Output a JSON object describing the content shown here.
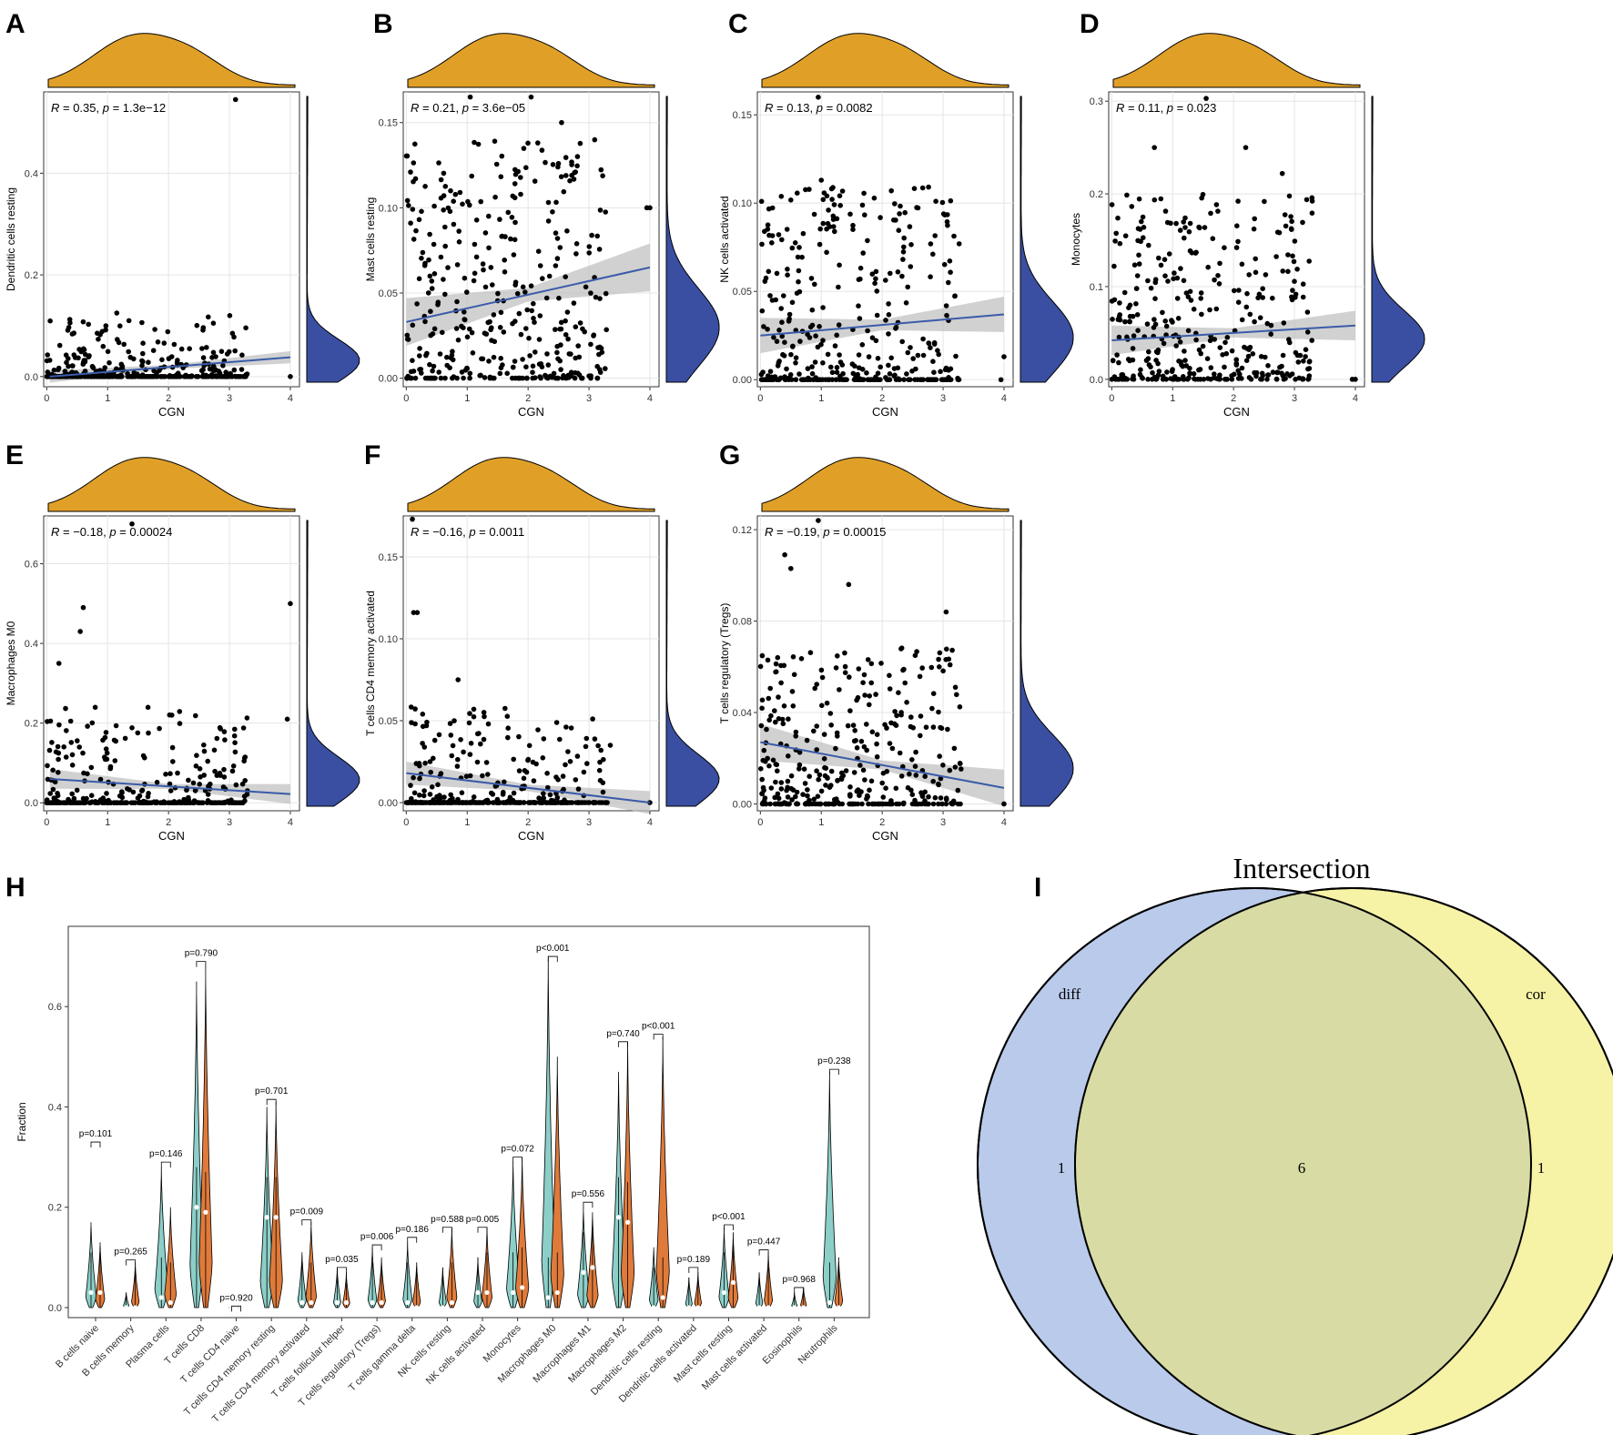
{
  "colors": {
    "accent_orange": "#E0A028",
    "density_blue": "#3A4FA1",
    "reg_line": "#3B5BA9",
    "ci_band": "#BEBEBE",
    "violin_teal": "#8CCFC8",
    "violin_orange": "#E07A3A",
    "venn_diff": "#B9CAEA",
    "venn_cor": "#F6F2A6",
    "venn_overlap": "#D8DCA4"
  },
  "chart_data": [
    {
      "panel": "A",
      "type": "scatter",
      "xlabel": "CGN",
      "ylabel": "Dendritic cells resting",
      "xlim": [
        -0.05,
        4.15
      ],
      "ylim": [
        -0.02,
        0.56
      ],
      "xticks": [
        0,
        1,
        2,
        3,
        4
      ],
      "yticks": [
        0.0,
        0.2,
        0.4
      ],
      "ytick_labels": [
        "0.0",
        "0.2",
        "0.4"
      ],
      "stat_r": "R = 0.35, ",
      "stat_p": "p = 1.3e−12",
      "fit": {
        "x0": 0.05,
        "y0": 0.0,
        "x1": 4.0,
        "y1": 0.038,
        "band": [
          0.004,
          0.012
        ]
      },
      "ymax_data": 0.12,
      "skew": 2.6,
      "zero_frac": 0.45,
      "outliers": [
        [
          3.1,
          0.545
        ],
        [
          1.15,
          0.125
        ],
        [
          1.35,
          0.11
        ],
        [
          4.0,
          0.0
        ],
        [
          3.05,
          0.085
        ]
      ]
    },
    {
      "panel": "B",
      "type": "scatter",
      "xlabel": "CGN",
      "ylabel": "Mast cells resting",
      "xlim": [
        -0.05,
        4.15
      ],
      "ylim": [
        -0.005,
        0.168
      ],
      "xticks": [
        0,
        1,
        2,
        3,
        4
      ],
      "yticks": [
        0.0,
        0.05,
        0.1,
        0.15
      ],
      "ytick_labels": [
        "0.00",
        "0.05",
        "0.10",
        "0.15"
      ],
      "stat_r": "R = 0.21, ",
      "stat_p": "p = 3.6e−05",
      "fit": {
        "x0": 0.0,
        "y0": 0.033,
        "x1": 4.0,
        "y1": 0.065,
        "band": [
          0.004,
          0.014
        ]
      },
      "ymax_data": 0.14,
      "skew": 1.4,
      "zero_frac": 0.1,
      "outliers": [
        [
          1.05,
          0.165
        ],
        [
          2.05,
          0.165
        ],
        [
          2.55,
          0.15
        ],
        [
          3.95,
          0.1
        ],
        [
          4.0,
          0.1
        ]
      ]
    },
    {
      "panel": "C",
      "type": "scatter",
      "xlabel": "CGN",
      "ylabel": "NK cells activated",
      "xlim": [
        -0.05,
        4.15
      ],
      "ylim": [
        -0.004,
        0.163
      ],
      "xticks": [
        0,
        1,
        2,
        3,
        4
      ],
      "yticks": [
        0.0,
        0.05,
        0.1,
        0.15
      ],
      "ytick_labels": [
        "0.00",
        "0.05",
        "0.10",
        "0.15"
      ],
      "stat_r": "R = 0.13, ",
      "stat_p": "p = 0.0082",
      "fit": {
        "x0": 0.0,
        "y0": 0.025,
        "x1": 4.0,
        "y1": 0.037,
        "band": [
          0.003,
          0.01
        ]
      },
      "ymax_data": 0.11,
      "skew": 1.5,
      "zero_frac": 0.3,
      "outliers": [
        [
          0.95,
          0.16
        ],
        [
          1.0,
          0.113
        ],
        [
          2.15,
          0.107
        ],
        [
          3.95,
          0.0
        ],
        [
          4.0,
          0.013
        ]
      ]
    },
    {
      "panel": "D",
      "type": "scatter",
      "xlabel": "CGN",
      "ylabel": "Monocytes",
      "xlim": [
        -0.05,
        4.15
      ],
      "ylim": [
        -0.008,
        0.31
      ],
      "xticks": [
        0,
        1,
        2,
        3,
        4
      ],
      "yticks": [
        0.0,
        0.1,
        0.2,
        0.3
      ],
      "ytick_labels": [
        "0.0",
        "0.1",
        "0.2",
        "0.3"
      ],
      "stat_r": "R = 0.11, ",
      "stat_p": "p = 0.023",
      "fit": {
        "x0": 0.0,
        "y0": 0.042,
        "x1": 4.0,
        "y1": 0.058,
        "band": [
          0.005,
          0.016
        ]
      },
      "ymax_data": 0.2,
      "skew": 1.9,
      "zero_frac": 0.12,
      "outliers": [
        [
          1.55,
          0.303
        ],
        [
          0.7,
          0.25
        ],
        [
          2.2,
          0.25
        ],
        [
          2.8,
          0.222
        ],
        [
          3.95,
          0.0
        ],
        [
          4.0,
          0.0
        ]
      ]
    },
    {
      "panel": "E",
      "type": "scatter",
      "xlabel": "CGN",
      "ylabel": "Macrophages M0",
      "xlim": [
        -0.05,
        4.15
      ],
      "ylim": [
        -0.02,
        0.72
      ],
      "xticks": [
        0,
        1,
        2,
        3,
        4
      ],
      "yticks": [
        0.0,
        0.2,
        0.4,
        0.6
      ],
      "ytick_labels": [
        "0.0",
        "0.2",
        "0.4",
        "0.6"
      ],
      "stat_r": "R = −0.18, ",
      "stat_p": "p = 0.00024",
      "fit": {
        "x0": 0.05,
        "y0": 0.06,
        "x1": 4.0,
        "y1": 0.022,
        "band": [
          0.006,
          0.025
        ]
      },
      "ymax_data": 0.24,
      "skew": 2.4,
      "zero_frac": 0.45,
      "outliers": [
        [
          1.4,
          0.7
        ],
        [
          0.6,
          0.49
        ],
        [
          0.55,
          0.43
        ],
        [
          4.0,
          0.5
        ],
        [
          3.95,
          0.21
        ],
        [
          0.2,
          0.35
        ]
      ]
    },
    {
      "panel": "F",
      "type": "scatter",
      "xlabel": "CGN",
      "ylabel": "T cells CD4 memory activated",
      "xlim": [
        -0.05,
        4.15
      ],
      "ylim": [
        -0.005,
        0.175
      ],
      "xticks": [
        0,
        1,
        2,
        3,
        4
      ],
      "yticks": [
        0.0,
        0.05,
        0.1,
        0.15
      ],
      "ytick_labels": [
        "0.00",
        "0.05",
        "0.10",
        "0.15"
      ],
      "stat_r": "R = −0.16, ",
      "stat_p": "p = 0.0011",
      "fit": {
        "x0": 0.0,
        "y0": 0.018,
        "x1": 4.0,
        "y1": 0.0,
        "band": [
          0.002,
          0.007
        ]
      },
      "ymax_data": 0.06,
      "skew": 2.2,
      "zero_frac": 0.5,
      "outliers": [
        [
          0.1,
          0.173
        ],
        [
          0.12,
          0.116
        ],
        [
          0.18,
          0.116
        ],
        [
          0.85,
          0.075
        ],
        [
          3.35,
          0.035
        ],
        [
          4.0,
          0.0
        ]
      ]
    },
    {
      "panel": "G",
      "type": "scatter",
      "xlabel": "CGN",
      "ylabel": "T cells regulatory (Tregs)",
      "xlim": [
        -0.05,
        4.15
      ],
      "ylim": [
        -0.003,
        0.126
      ],
      "xticks": [
        0,
        1,
        2,
        3,
        4
      ],
      "yticks": [
        0.0,
        0.04,
        0.08,
        0.12
      ],
      "ytick_labels": [
        "0.00",
        "0.04",
        "0.08",
        "0.12"
      ],
      "stat_r": "R = −0.19, ",
      "stat_p": "p = 0.00015",
      "fit": {
        "x0": 0.0,
        "y0": 0.027,
        "x1": 4.0,
        "y1": 0.007,
        "band": [
          0.002,
          0.008
        ]
      },
      "ymax_data": 0.07,
      "skew": 1.6,
      "zero_frac": 0.25,
      "outliers": [
        [
          0.95,
          0.124
        ],
        [
          0.4,
          0.109
        ],
        [
          0.5,
          0.103
        ],
        [
          1.45,
          0.096
        ],
        [
          3.05,
          0.084
        ],
        [
          4.0,
          0.0
        ]
      ]
    },
    {
      "panel": "H",
      "type": "violin",
      "ylabel": "Fraction",
      "ylim": [
        -0.02,
        0.76
      ],
      "yticks": [
        0.0,
        0.2,
        0.4,
        0.6
      ],
      "ytick_labels": [
        "0.0",
        "0.2",
        "0.4",
        "0.6"
      ],
      "categories": [
        "B cells naive",
        "B cells memory",
        "Plasma cells",
        "T cells CD8",
        "T cells CD4 naive",
        "T cells CD4 memory resting",
        "T cells CD4 memory activated",
        "T cells follicular helper",
        "T cells regulatory (Tregs)",
        "T cells gamma delta",
        "NK cells resting",
        "NK cells activated",
        "Monocytes",
        "Macrophages M0",
        "Macrophages M1",
        "Macrophages M2",
        "Dendritic cells resting",
        "Dendritic cells activated",
        "Mast cells resting",
        "Mast cells activated",
        "Eosinophils",
        "Neutrophils"
      ],
      "pvalues": [
        "p=0.101",
        "p=0.265",
        "p=0.146",
        "p=0.790",
        "p=0.920",
        "p=0.701",
        "p=0.009",
        "p=0.035",
        "p=0.006",
        "p=0.186",
        "p=0.588",
        "p=0.005",
        "p=0.072",
        "p<0.001",
        "p=0.556",
        "p=0.740",
        "p<0.001",
        "p=0.189",
        "p<0.001",
        "p=0.447",
        "p=0.968",
        "p=0.238"
      ],
      "group_a_max": [
        0.17,
        0.03,
        0.28,
        0.65,
        0.003,
        0.4,
        0.11,
        0.08,
        0.12,
        0.13,
        0.08,
        0.1,
        0.29,
        0.7,
        0.2,
        0.47,
        0.12,
        0.06,
        0.16,
        0.07,
        0.03,
        0.47
      ],
      "group_b_max": [
        0.13,
        0.09,
        0.2,
        0.68,
        0.003,
        0.41,
        0.17,
        0.07,
        0.1,
        0.09,
        0.16,
        0.16,
        0.3,
        0.5,
        0.19,
        0.53,
        0.54,
        0.07,
        0.15,
        0.11,
        0.04,
        0.1
      ],
      "group_a_median": [
        0.03,
        0.0,
        0.02,
        0.2,
        0.0,
        0.18,
        0.01,
        0.01,
        0.01,
        0.01,
        0.0,
        0.03,
        0.03,
        0.02,
        0.07,
        0.18,
        0.0,
        0.0,
        0.03,
        0.0,
        0.0,
        0.01
      ],
      "group_b_median": [
        0.03,
        0.0,
        0.01,
        0.19,
        0.0,
        0.18,
        0.01,
        0.01,
        0.01,
        0.0,
        0.01,
        0.03,
        0.04,
        0.03,
        0.08,
        0.17,
        0.02,
        0.0,
        0.05,
        0.0,
        0.0,
        0.0
      ],
      "bracket_y": [
        0.33,
        0.095,
        0.29,
        0.69,
        0.003,
        0.415,
        0.175,
        0.08,
        0.125,
        0.14,
        0.16,
        0.16,
        0.3,
        0.7,
        0.21,
        0.53,
        0.545,
        0.08,
        0.165,
        0.115,
        0.04,
        0.475
      ]
    },
    {
      "panel": "I",
      "type": "venn",
      "title": "Intersection",
      "sets": [
        {
          "name": "diff",
          "only": "1"
        },
        {
          "name": "cor",
          "only": "1"
        }
      ],
      "intersection": "6"
    }
  ]
}
